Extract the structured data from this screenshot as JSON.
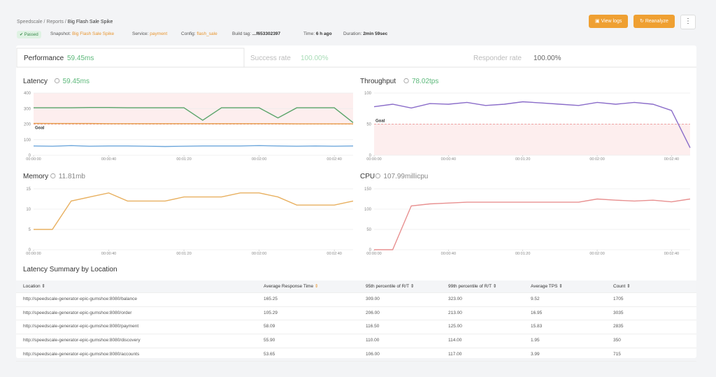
{
  "breadcrumb": [
    "Speedscale",
    "Reports",
    "Big Flash Sale Spike"
  ],
  "header": {
    "status": "Passed",
    "meta": [
      {
        "label": "Snapshot:",
        "value": "Big Flash Sale Spike"
      },
      {
        "label": "Service:",
        "value": "payment"
      },
      {
        "label": "Config:",
        "value": "flash_sale"
      },
      {
        "label": "Build tag:",
        "value": "...f653302397"
      },
      {
        "label": "Time:",
        "value": "6 h ago"
      },
      {
        "label": "Duration:",
        "value": "2min 59sec"
      }
    ],
    "buttons": [
      "View logs",
      "Reanalyze"
    ]
  },
  "tabs": [
    {
      "label": "Performance",
      "value": "59.45ms"
    },
    {
      "label": "Success rate",
      "value": "100.00%"
    },
    {
      "label": "Responder rate",
      "value": "100.00%"
    }
  ],
  "chart_data": [
    {
      "type": "line",
      "title": "Latency",
      "value": "59.45ms",
      "value_color": "#5cb87a",
      "x": [
        0,
        10,
        20,
        30,
        40,
        50,
        60,
        70,
        80,
        90,
        100,
        110,
        120,
        130,
        140,
        150,
        160,
        170
      ],
      "xlim": [
        0,
        170
      ],
      "xticks": [
        {
          "value": 0,
          "label": "00:00:00"
        },
        {
          "value": 40,
          "label": "00:00:40"
        },
        {
          "value": 80,
          "label": "00:01:20"
        },
        {
          "value": 120,
          "label": "00:02:00"
        },
        {
          "value": 160,
          "label": "00:02:40"
        }
      ],
      "ylim": [
        0,
        400
      ],
      "yticks": [
        0,
        100,
        200,
        300,
        400
      ],
      "grid": true,
      "goal": {
        "value": 200,
        "label": "Goal",
        "shade": "above"
      },
      "series": [
        {
          "color": "#5aa469",
          "values": [
            305,
            305,
            305,
            307,
            307,
            305,
            305,
            305,
            305,
            225,
            305,
            305,
            305,
            240,
            305,
            305,
            305,
            210
          ]
        },
        {
          "color": "#e8a04c",
          "values": [
            205,
            204,
            204,
            204,
            203,
            203,
            203,
            203,
            203,
            203,
            203,
            203,
            203,
            203,
            202,
            202,
            202,
            202
          ]
        },
        {
          "color": "#6fa8dc",
          "values": [
            60,
            58,
            62,
            58,
            60,
            60,
            58,
            56,
            58,
            60,
            60,
            60,
            62,
            60,
            58,
            60,
            58,
            60
          ]
        }
      ]
    },
    {
      "type": "line",
      "title": "Throughput",
      "value": "78.02tps",
      "value_color": "#5cb87a",
      "x": [
        0,
        10,
        20,
        30,
        40,
        50,
        60,
        70,
        80,
        90,
        100,
        110,
        120,
        130,
        140,
        150,
        160,
        170
      ],
      "xlim": [
        0,
        170
      ],
      "xticks": [
        {
          "value": 0,
          "label": "00:00:00"
        },
        {
          "value": 40,
          "label": "00:00:40"
        },
        {
          "value": 80,
          "label": "00:01:20"
        },
        {
          "value": 120,
          "label": "00:02:00"
        },
        {
          "value": 160,
          "label": "00:02:40"
        }
      ],
      "ylim": [
        0,
        100
      ],
      "yticks": [
        0,
        50,
        100
      ],
      "grid": true,
      "goal": {
        "value": 50,
        "label": "Goal",
        "shade": "below"
      },
      "series": [
        {
          "color": "#8a6cc9",
          "values": [
            78,
            82,
            76,
            83,
            82,
            85,
            80,
            82,
            86,
            84,
            82,
            80,
            85,
            82,
            85,
            82,
            72,
            12
          ]
        }
      ]
    },
    {
      "type": "line",
      "title": "Memory",
      "value": "11.81mb",
      "value_color": "#888888",
      "x": [
        0,
        10,
        20,
        30,
        40,
        50,
        60,
        70,
        80,
        90,
        100,
        110,
        120,
        130,
        140,
        150,
        160,
        170
      ],
      "xlim": [
        0,
        170
      ],
      "xticks": [
        {
          "value": 0,
          "label": "00:00:00"
        },
        {
          "value": 40,
          "label": "00:00:40"
        },
        {
          "value": 80,
          "label": "00:01:20"
        },
        {
          "value": 120,
          "label": "00:02:00"
        },
        {
          "value": 160,
          "label": "00:02:40"
        }
      ],
      "ylim": [
        0,
        15
      ],
      "yticks": [
        0,
        5,
        10,
        15
      ],
      "grid": true,
      "series": [
        {
          "color": "#e8b060",
          "values": [
            5,
            5,
            12,
            13,
            14,
            12,
            12,
            12,
            13,
            13,
            13,
            14,
            14,
            13,
            11,
            11,
            11,
            12
          ]
        }
      ]
    },
    {
      "type": "line",
      "title": "CPU",
      "value": "107.99millicpu",
      "value_color": "#888888",
      "x": [
        0,
        10,
        20,
        30,
        40,
        50,
        60,
        70,
        80,
        90,
        100,
        110,
        120,
        130,
        140,
        150,
        160,
        170
      ],
      "xlim": [
        0,
        170
      ],
      "xticks": [
        {
          "value": 0,
          "label": "00:00:00"
        },
        {
          "value": 40,
          "label": "00:00:40"
        },
        {
          "value": 80,
          "label": "00:01:20"
        },
        {
          "value": 120,
          "label": "00:02:00"
        },
        {
          "value": 160,
          "label": "00:02:40"
        }
      ],
      "ylim": [
        0,
        150
      ],
      "yticks": [
        0,
        50,
        100,
        150
      ],
      "grid": true,
      "series": [
        {
          "color": "#e89090",
          "values": [
            0,
            0,
            108,
            113,
            115,
            117,
            117,
            117,
            117,
            117,
            117,
            117,
            125,
            122,
            120,
            122,
            118,
            125
          ]
        }
      ]
    }
  ],
  "table": {
    "title": "Latency Summary by Location",
    "columns": [
      "Location",
      "Average Response Time",
      "95th percentile of R/T",
      "99th percentile of R/T",
      "Average TPS",
      "Count"
    ],
    "rows": [
      [
        "http://speedscale-generator-epic-gumshoe:8080/balance",
        "165.25",
        "309.00",
        "323.00",
        "9.52",
        "1705"
      ],
      [
        "http://speedscale-generator-epic-gumshoe:8080/order",
        "105.29",
        "206.00",
        "213.00",
        "16.95",
        "3035"
      ],
      [
        "http://speedscale-generator-epic-gumshoe:8080/payment",
        "58.09",
        "116.50",
        "125.00",
        "15.83",
        "2835"
      ],
      [
        "http://speedscale-generator-epic-gumshoe:8080/discovery",
        "55.90",
        "110.00",
        "114.00",
        "1.95",
        "350"
      ],
      [
        "http://speedscale-generator-epic-gumshoe:8080/accounts",
        "53.65",
        "106.00",
        "117.00",
        "3.99",
        "715"
      ]
    ]
  }
}
